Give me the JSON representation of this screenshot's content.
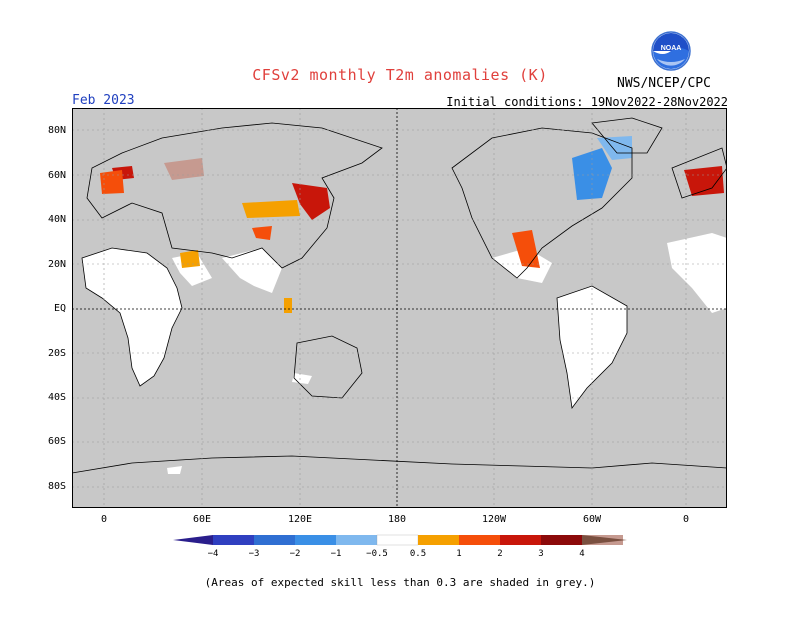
{
  "title": "CFSv2 monthly T2m anomalies (K)",
  "valid_month": "Feb 2023",
  "initial_conditions": "Initial conditions: 19Nov2022-28Nov2022",
  "agency": "NWS/NCEP/CPC",
  "logo_text": "NOAA",
  "footnote": "(Areas of expected skill less than 0.3 are shaded in grey.)",
  "lat_labels": [
    "80N",
    "60N",
    "40N",
    "20N",
    "EQ",
    "20S",
    "40S",
    "60S",
    "80S"
  ],
  "lon_labels": [
    "0",
    "60E",
    "120E",
    "180",
    "120W",
    "60W",
    "0"
  ],
  "colorbar": {
    "labels": [
      "−4",
      "−3",
      "−2",
      "−1",
      "−0.5",
      "0.5",
      "1",
      "2",
      "3",
      "4"
    ],
    "colors": {
      "below_-4": "#2a1e8c",
      "-4_-3": "#2f3fc0",
      "-3_-2": "#2f6fd2",
      "-2_-1": "#3a8fe6",
      "-1_-0.5": "#7fb8ee",
      "-0.5_0.5": "#ffffff",
      "0.5_1": "#f5a000",
      "1_2": "#f54e0a",
      "2_3": "#c8160a",
      "3_4": "#8c0a0a",
      "4_above": "#c69a90",
      "beyond": "#7a5040"
    }
  },
  "map_colors": {
    "low_skill": "#c8c8c8",
    "ocean": "#c8c8c8",
    "grid": "#9a9a9a"
  }
}
